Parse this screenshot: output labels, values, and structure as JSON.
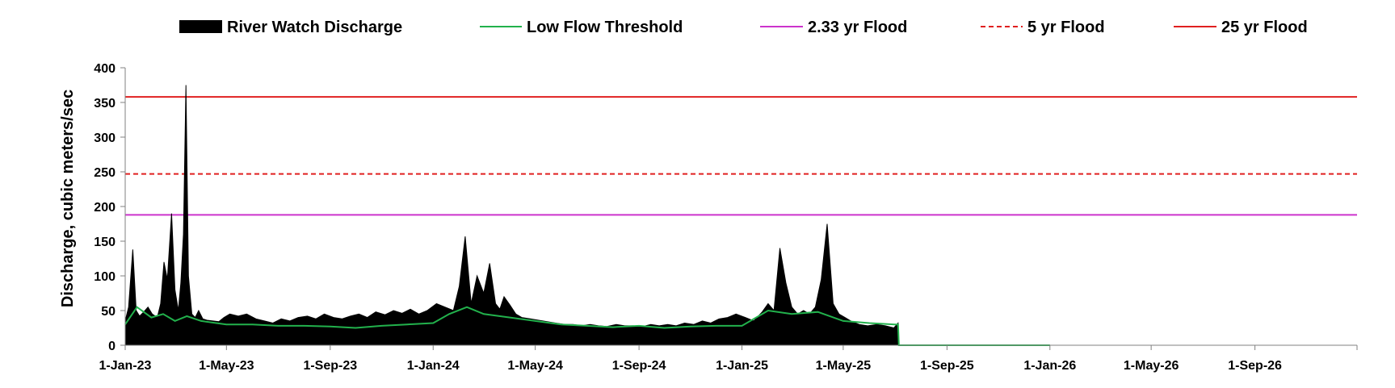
{
  "chart_data": {
    "type": "area",
    "title": "",
    "xlabel": "",
    "ylabel": "Discharge, cubic meters/sec",
    "ylim": [
      0,
      400
    ],
    "yticks": [
      0,
      50,
      100,
      150,
      200,
      250,
      300,
      350,
      400
    ],
    "xlim": [
      "2023-01-01",
      "2026-12-31"
    ],
    "xticks": [
      {
        "date": "2023-01-01",
        "label": "1-Jan-23"
      },
      {
        "date": "2023-05-01",
        "label": "1-May-23"
      },
      {
        "date": "2023-09-01",
        "label": "1-Sep-23"
      },
      {
        "date": "2024-01-01",
        "label": "1-Jan-24"
      },
      {
        "date": "2024-05-01",
        "label": "1-May-24"
      },
      {
        "date": "2024-09-01",
        "label": "1-Sep-24"
      },
      {
        "date": "2025-01-01",
        "label": "1-Jan-25"
      },
      {
        "date": "2025-05-01",
        "label": "1-May-25"
      },
      {
        "date": "2025-09-01",
        "label": "1-Sep-25"
      },
      {
        "date": "2026-01-01",
        "label": "1-Jan-26"
      },
      {
        "date": "2026-05-01",
        "label": "1-May-26"
      },
      {
        "date": "2026-09-01",
        "label": "1-Sep-26"
      }
    ],
    "legend_position": "top",
    "series": [
      {
        "name": "River Watch Discharge",
        "kind": "area",
        "color": "#000000",
        "x": [
          "2023-01-01",
          "2023-01-05",
          "2023-01-10",
          "2023-01-14",
          "2023-01-18",
          "2023-01-23",
          "2023-01-28",
          "2023-02-02",
          "2023-02-08",
          "2023-02-12",
          "2023-02-16",
          "2023-02-20",
          "2023-02-25",
          "2023-03-01",
          "2023-03-05",
          "2023-03-08",
          "2023-03-11",
          "2023-03-14",
          "2023-03-17",
          "2023-03-21",
          "2023-03-25",
          "2023-03-29",
          "2023-04-03",
          "2023-04-08",
          "2023-04-15",
          "2023-04-22",
          "2023-04-28",
          "2023-05-05",
          "2023-05-15",
          "2023-05-25",
          "2023-06-05",
          "2023-06-15",
          "2023-06-25",
          "2023-07-05",
          "2023-07-15",
          "2023-07-25",
          "2023-08-05",
          "2023-08-15",
          "2023-08-25",
          "2023-09-05",
          "2023-09-15",
          "2023-09-25",
          "2023-10-05",
          "2023-10-15",
          "2023-10-25",
          "2023-11-05",
          "2023-11-15",
          "2023-11-25",
          "2023-12-05",
          "2023-12-15",
          "2023-12-25",
          "2024-01-05",
          "2024-01-15",
          "2024-01-25",
          "2024-02-01",
          "2024-02-08",
          "2024-02-15",
          "2024-02-22",
          "2024-03-01",
          "2024-03-08",
          "2024-03-15",
          "2024-03-20",
          "2024-03-25",
          "2024-04-01",
          "2024-04-08",
          "2024-04-15",
          "2024-04-25",
          "2024-05-05",
          "2024-05-15",
          "2024-05-25",
          "2024-06-05",
          "2024-06-15",
          "2024-06-25",
          "2024-07-05",
          "2024-07-15",
          "2024-07-25",
          "2024-08-05",
          "2024-08-15",
          "2024-08-25",
          "2024-09-05",
          "2024-09-15",
          "2024-09-25",
          "2024-10-05",
          "2024-10-15",
          "2024-10-25",
          "2024-11-05",
          "2024-11-15",
          "2024-11-25",
          "2024-12-05",
          "2024-12-15",
          "2024-12-25",
          "2025-01-05",
          "2025-01-15",
          "2025-01-25",
          "2025-02-01",
          "2025-02-08",
          "2025-02-15",
          "2025-02-22",
          "2025-03-01",
          "2025-03-08",
          "2025-03-15",
          "2025-03-22",
          "2025-03-29",
          "2025-04-05",
          "2025-04-12",
          "2025-04-19",
          "2025-04-26",
          "2025-05-03",
          "2025-05-10",
          "2025-05-20",
          "2025-05-30",
          "2025-06-10",
          "2025-06-20",
          "2025-06-30",
          "2025-07-05",
          "2025-07-06"
        ],
        "y": [
          35,
          55,
          138,
          50,
          42,
          48,
          55,
          45,
          40,
          60,
          120,
          95,
          190,
          80,
          50,
          90,
          160,
          375,
          100,
          45,
          40,
          50,
          38,
          36,
          35,
          34,
          40,
          45,
          42,
          45,
          38,
          35,
          32,
          38,
          35,
          40,
          42,
          38,
          45,
          40,
          38,
          42,
          45,
          40,
          48,
          44,
          50,
          46,
          52,
          45,
          50,
          60,
          55,
          50,
          85,
          157,
          60,
          100,
          75,
          118,
          60,
          52,
          70,
          58,
          45,
          40,
          38,
          36,
          34,
          32,
          30,
          30,
          28,
          30,
          28,
          27,
          30,
          28,
          28,
          27,
          30,
          28,
          30,
          28,
          32,
          30,
          35,
          32,
          38,
          40,
          45,
          40,
          35,
          48,
          60,
          50,
          140,
          90,
          55,
          45,
          50,
          45,
          55,
          95,
          175,
          60,
          45,
          40,
          35,
          30,
          28,
          30,
          28,
          25,
          32,
          0
        ]
      },
      {
        "name": "Low Flow Threshold",
        "kind": "line",
        "color": "#22b14c",
        "x": [
          "2023-01-01",
          "2023-01-15",
          "2023-02-01",
          "2023-02-15",
          "2023-03-01",
          "2023-03-15",
          "2023-04-01",
          "2023-05-01",
          "2023-06-01",
          "2023-07-01",
          "2023-08-01",
          "2023-09-01",
          "2023-10-01",
          "2023-11-01",
          "2023-12-01",
          "2024-01-01",
          "2024-01-20",
          "2024-02-10",
          "2024-03-01",
          "2024-04-01",
          "2024-05-01",
          "2024-06-01",
          "2024-07-01",
          "2024-08-01",
          "2024-09-01",
          "2024-10-01",
          "2024-11-01",
          "2024-12-01",
          "2025-01-01",
          "2025-02-01",
          "2025-03-01",
          "2025-04-01",
          "2025-05-01",
          "2025-06-01",
          "2025-07-01",
          "2025-07-05",
          "2025-07-06",
          "2026-01-01"
        ],
        "y": [
          30,
          55,
          40,
          45,
          35,
          42,
          35,
          30,
          30,
          28,
          28,
          27,
          25,
          28,
          30,
          32,
          45,
          55,
          45,
          40,
          35,
          30,
          28,
          26,
          28,
          25,
          27,
          28,
          28,
          50,
          45,
          48,
          35,
          32,
          30,
          30,
          0,
          0
        ]
      },
      {
        "name": "2.33 yr Flood",
        "kind": "hline",
        "color": "#cc33cc",
        "dash": false,
        "value": 188
      },
      {
        "name": "5 yr Flood",
        "kind": "hline",
        "color": "#e02020",
        "dash": true,
        "value": 247
      },
      {
        "name": "25 yr Flood",
        "kind": "hline",
        "color": "#e02020",
        "dash": false,
        "value": 358
      }
    ]
  }
}
